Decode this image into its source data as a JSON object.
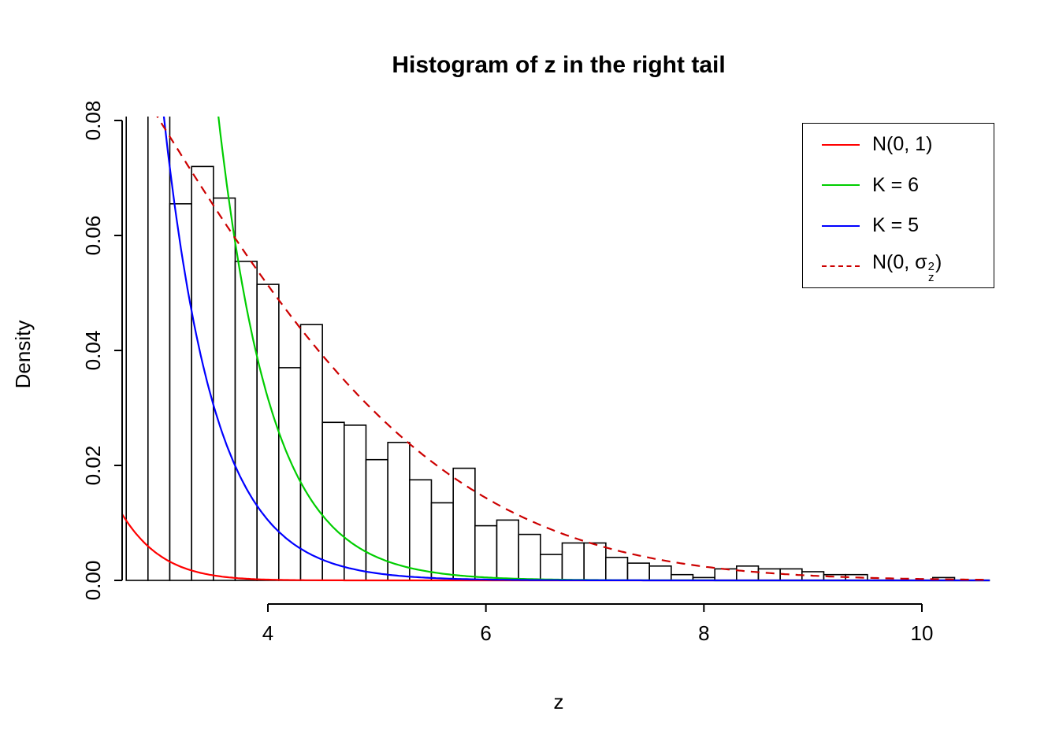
{
  "chart_data": {
    "type": "histogram",
    "title": "Histogram of z in the right tail",
    "xlabel": "z",
    "ylabel": "Density",
    "x_ticks": [
      4,
      6,
      8,
      10
    ],
    "y_ticks": [
      0,
      0.02,
      0.04,
      0.06,
      0.08
    ],
    "y_tick_labels": [
      "0.00",
      "0.02",
      "0.04",
      "0.06",
      "0.08"
    ],
    "x_shown_range": [
      2.66,
      10.64
    ],
    "y_shown_range": [
      0,
      0.081
    ],
    "grid": false,
    "legend_position": "top-right",
    "bins": {
      "start": 2.7,
      "width": 0.2,
      "heights": [
        0.105,
        0.092,
        0.0655,
        0.072,
        0.0665,
        0.0555,
        0.0515,
        0.037,
        0.0445,
        0.0275,
        0.027,
        0.021,
        0.024,
        0.0175,
        0.0135,
        0.0195,
        0.0095,
        0.0105,
        0.008,
        0.0045,
        0.0065,
        0.0065,
        0.004,
        0.003,
        0.0025,
        0.001,
        0.0005,
        0.002,
        0.0025,
        0.002,
        0.002,
        0.0015,
        0.001,
        0.001,
        0,
        0,
        0,
        0.0005,
        0,
        0
      ],
      "note": "first two bars extend above the visible y range and are clipped"
    },
    "curves": [
      {
        "name": "N(0, 1)",
        "color": "#FF0000",
        "style": "solid",
        "model": {
          "type": "normal",
          "mean": 0,
          "sd": 1,
          "scale": 1
        }
      },
      {
        "name": "K = 6",
        "color": "#00CD00",
        "style": "solid",
        "model": {
          "type": "exp",
          "c": 119.2,
          "a": 2.058
        }
      },
      {
        "name": "K = 5",
        "color": "#0000FF",
        "style": "solid",
        "model": {
          "type": "exp",
          "c": 54.3,
          "a": 2.138
        }
      },
      {
        "name": "N(0, σz²)",
        "color": "#CC0000",
        "style": "dashed",
        "model": {
          "type": "normal",
          "mean": 0,
          "sd": 2.8,
          "scale": 1
        }
      }
    ]
  },
  "legend": {
    "items": [
      {
        "label": "N(0, 1)",
        "color": "#FF0000",
        "dash": false
      },
      {
        "label": "K = 6",
        "color": "#00CD00",
        "dash": false
      },
      {
        "label": "K = 5",
        "color": "#0000FF",
        "dash": false
      },
      {
        "label": "N(0, σz²)",
        "label_parts": {
          "pre": "N(0, σ",
          "sup": "2",
          "sub": "z",
          "post": ")"
        },
        "color": "#CC0000",
        "dash": true
      }
    ]
  }
}
